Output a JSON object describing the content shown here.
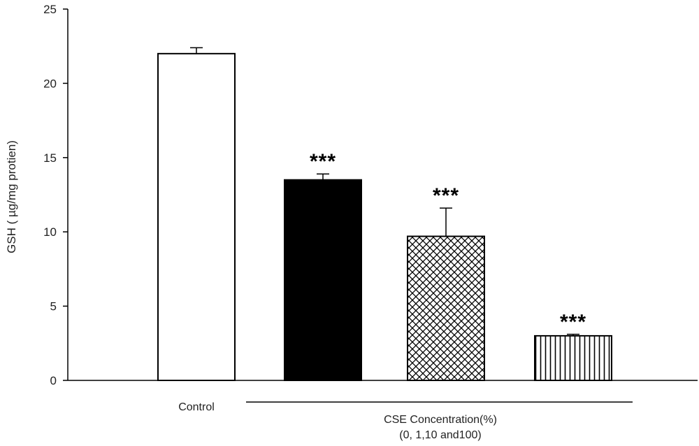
{
  "chart_data": {
    "type": "bar",
    "ylabel": "GSH ( µg/mg protien)",
    "ylim": [
      0,
      25
    ],
    "yticks": [
      0,
      5,
      10,
      15,
      20,
      25
    ],
    "grid": false,
    "categories": [
      "Control",
      "0",
      "1,10",
      "and100"
    ],
    "bars": [
      {
        "label": "Control",
        "value": 22.0,
        "error": 0.4,
        "significance": "",
        "fill": "white"
      },
      {
        "label": "",
        "value": 13.5,
        "error": 0.4,
        "significance": "***",
        "fill": "black"
      },
      {
        "label": "",
        "value": 9.7,
        "error": 1.9,
        "significance": "***",
        "fill": "crosshatch"
      },
      {
        "label": "",
        "value": 3.0,
        "error": 0.1,
        "significance": "***",
        "fill": "vertical-lines"
      }
    ],
    "group_label_line1": "CSE Concentration(%)",
    "group_label_line2": "(0, 1,10 and100)"
  }
}
